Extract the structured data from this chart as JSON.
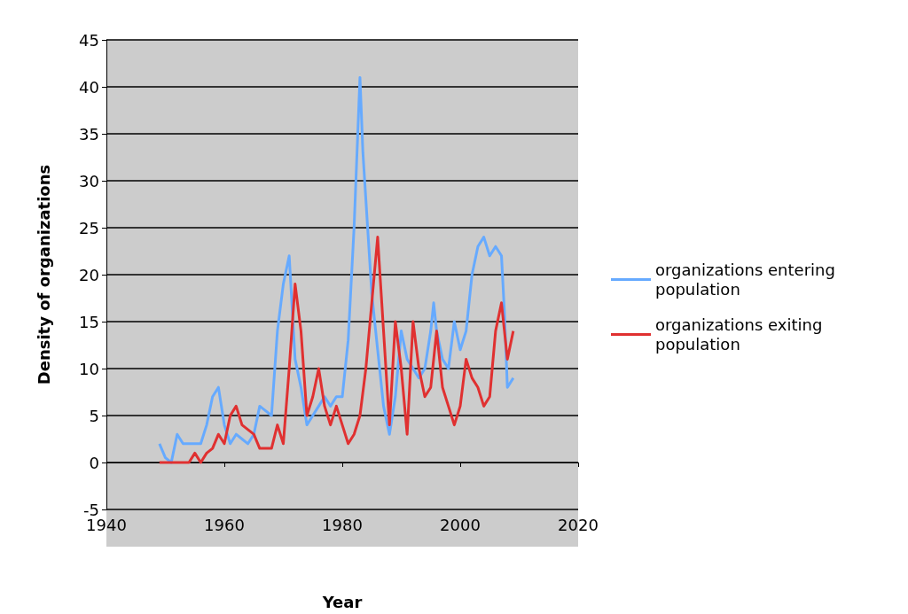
{
  "chart_data": {
    "type": "line",
    "xlabel": "Year",
    "ylabel": "Density of organizations",
    "xlim": [
      1940,
      2020
    ],
    "xticks": [
      1940,
      1960,
      1980,
      2000,
      2020
    ],
    "ylim": [
      -5,
      45
    ],
    "yticks": [
      -5,
      0,
      5,
      10,
      15,
      20,
      25,
      30,
      35,
      40,
      45
    ],
    "grid": "y",
    "legend": "right",
    "marker": "none",
    "line_style": "solid",
    "series": [
      {
        "name": "organizations entering population",
        "color": "#66aaff",
        "x": [
          1949,
          1950,
          1951,
          1952,
          1953,
          1956,
          1957,
          1958,
          1959,
          1960,
          1961,
          1962,
          1963,
          1964,
          1965,
          1966,
          1967,
          1968,
          1969,
          1970,
          1971,
          1972,
          1973,
          1974,
          1975,
          1976,
          1977,
          1978,
          1979,
          1980,
          1981,
          1982,
          1982.5,
          1983,
          1983.5,
          1984,
          1985,
          1986,
          1987,
          1988,
          1989,
          1990,
          1991,
          1992,
          1993,
          1994,
          1995,
          1995.5,
          1996,
          1997,
          1998,
          1999,
          2000,
          2001,
          2002,
          2003,
          2004,
          2005,
          2006,
          2007,
          2007.5,
          2008,
          2009
        ],
        "values": [
          2,
          0.5,
          0,
          3,
          2,
          2,
          4,
          7,
          8,
          4,
          2,
          3,
          2.5,
          2,
          3,
          6,
          5.5,
          5,
          14,
          19,
          22,
          11,
          8,
          4,
          5,
          6,
          7,
          6,
          7,
          7,
          13,
          25,
          33,
          41,
          33,
          28,
          18,
          12,
          6,
          3,
          7,
          14,
          11,
          10,
          9,
          10,
          14,
          17,
          14,
          11,
          10,
          15,
          12,
          14,
          20,
          23,
          24,
          22,
          23,
          22,
          16,
          8,
          9
        ]
      },
      {
        "name": "organizations exiting population",
        "color": "#e03030",
        "x": [
          1949,
          1954,
          1955,
          1956,
          1957,
          1958,
          1959,
          1960,
          1961,
          1962,
          1963,
          1964,
          1965,
          1966,
          1967,
          1968,
          1969,
          1970,
          1971,
          1972,
          1973,
          1974,
          1975,
          1976,
          1977,
          1978,
          1979,
          1980,
          1981,
          1982,
          1983,
          1984,
          1985,
          1986,
          1987,
          1988,
          1989,
          1990,
          1991,
          1992,
          1993,
          1994,
          1995,
          1996,
          1997,
          1998,
          1999,
          2000,
          2001,
          2002,
          2003,
          2004,
          2005,
          2006,
          2007,
          2008,
          2009
        ],
        "values": [
          0,
          0,
          1,
          0,
          1,
          1.5,
          3,
          2,
          5,
          6,
          4,
          3.5,
          3,
          1.5,
          1.5,
          1.5,
          4,
          2,
          10,
          19,
          14,
          5,
          7,
          10,
          6,
          4,
          6,
          4,
          2,
          3,
          5,
          10,
          17,
          24,
          14,
          4,
          15,
          10,
          3,
          15,
          10,
          7,
          8,
          14,
          8,
          6,
          4,
          6,
          11,
          9,
          8,
          6,
          7,
          14,
          17,
          11,
          14
        ]
      }
    ]
  }
}
